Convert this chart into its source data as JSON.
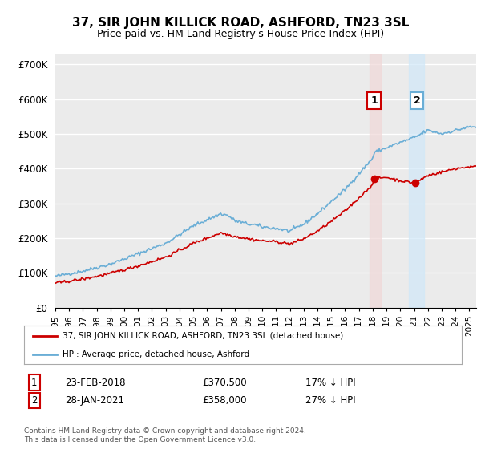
{
  "title": "37, SIR JOHN KILLICK ROAD, ASHFORD, TN23 3SL",
  "subtitle": "Price paid vs. HM Land Registry's House Price Index (HPI)",
  "ylabel_ticks": [
    "£0",
    "£100K",
    "£200K",
    "£300K",
    "£400K",
    "£500K",
    "£600K",
    "£700K"
  ],
  "ytick_vals": [
    0,
    100000,
    200000,
    300000,
    400000,
    500000,
    600000,
    700000
  ],
  "ylim": [
    0,
    730000
  ],
  "xlim_start": 1995.0,
  "xlim_end": 2025.5,
  "hpi_color": "#6aaed6",
  "price_color": "#cc0000",
  "marker1_date": 2018.12,
  "marker1_price": 370500,
  "marker2_date": 2021.07,
  "marker2_price": 358000,
  "annotation1": "1",
  "annotation2": "2",
  "legend_label1": "37, SIR JOHN KILLICK ROAD, ASHFORD, TN23 3SL (detached house)",
  "legend_label2": "HPI: Average price, detached house, Ashford",
  "table_row1": [
    "1",
    "23-FEB-2018",
    "£370,500",
    "17% ↓ HPI"
  ],
  "table_row2": [
    "2",
    "28-JAN-2021",
    "£358,000",
    "27% ↓ HPI"
  ],
  "footer": "Contains HM Land Registry data © Crown copyright and database right 2024.\nThis data is licensed under the Open Government Licence v3.0.",
  "background_color": "#ffffff",
  "plot_bg_color": "#ebebeb",
  "grid_color": "#ffffff",
  "hpi_knots_t": [
    1995,
    1997,
    1999,
    2001,
    2003,
    2005,
    2007,
    2007.5,
    2008,
    2009,
    2009.5,
    2010,
    2011,
    2012,
    2013,
    2014,
    2015,
    2016,
    2017,
    2018,
    2018.12,
    2019,
    2020,
    2021.07,
    2022,
    2023,
    2024,
    2025
  ],
  "hpi_knots_v": [
    90000,
    105000,
    125000,
    155000,
    185000,
    235000,
    270000,
    265000,
    250000,
    240000,
    238000,
    232000,
    228000,
    220000,
    240000,
    270000,
    305000,
    340000,
    385000,
    430000,
    446386,
    460000,
    475000,
    490411,
    510000,
    500000,
    510000,
    520000
  ],
  "price_knots_t": [
    1995,
    1997,
    1999,
    2001,
    2003,
    2005,
    2007,
    2008,
    2009,
    2010,
    2011,
    2012,
    2013,
    2014,
    2015,
    2016,
    2017,
    2018,
    2018.12,
    2019,
    2020,
    2021.07,
    2022,
    2023,
    2024,
    2025
  ],
  "price_knots_v": [
    70000,
    82000,
    98000,
    120000,
    145000,
    185000,
    215000,
    205000,
    198000,
    192000,
    190000,
    183000,
    198000,
    220000,
    248000,
    278000,
    315000,
    355000,
    370500,
    375000,
    365000,
    358000,
    380000,
    390000,
    400000,
    405000
  ]
}
